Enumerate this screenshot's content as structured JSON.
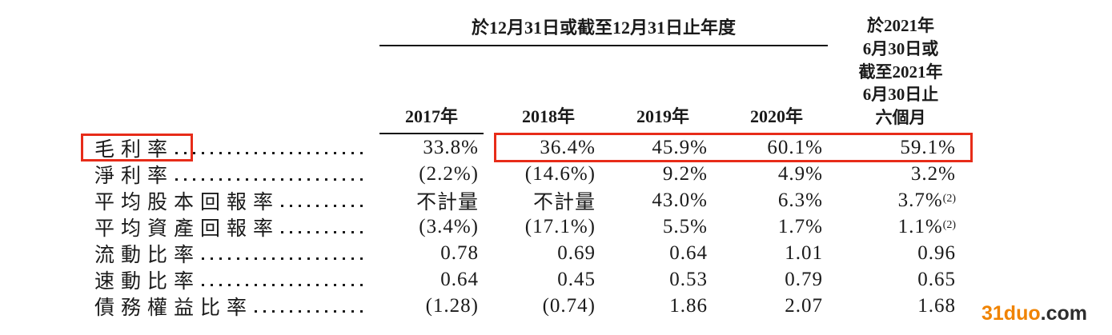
{
  "table": {
    "span_header": "於12月31日或截至12月31日止年度",
    "period_2021_lines": [
      "於2021年",
      "6月30日或",
      "截至2021年",
      "6月30日止",
      "六個月"
    ],
    "year_headers": [
      "2017年",
      "2018年",
      "2019年",
      "2020年"
    ],
    "rows": [
      {
        "label": "毛利率",
        "values": [
          "33.8%",
          "36.4%",
          "45.9%",
          "60.1%",
          "59.1%"
        ]
      },
      {
        "label": "淨利率",
        "values": [
          "(2.2%)",
          "(14.6%)",
          "9.2%",
          "4.9%",
          "3.2%"
        ]
      },
      {
        "label": "平均股本回報率",
        "values": [
          "不計量",
          "不計量",
          "43.0%",
          "6.3%",
          "3.7%"
        ],
        "sup": "(2)"
      },
      {
        "label": "平均資產回報率",
        "values": [
          "(3.4%)",
          "(17.1%)",
          "5.5%",
          "1.7%",
          "1.1%"
        ],
        "sup": "(2)"
      },
      {
        "label": "流動比率",
        "values": [
          "0.78",
          "0.69",
          "0.64",
          "1.01",
          "0.96"
        ]
      },
      {
        "label": "速動比率",
        "values": [
          "0.64",
          "0.45",
          "0.53",
          "0.79",
          "0.65"
        ]
      },
      {
        "label": "債務權益比率",
        "values": [
          "(1.28)",
          "(0.74)",
          "1.86",
          "2.07",
          "1.68"
        ]
      }
    ]
  },
  "colors": {
    "highlight": "#e72c19",
    "watermark_brand": "#f08300"
  },
  "watermark": {
    "brand": "31duo",
    "suffix": ".com"
  }
}
